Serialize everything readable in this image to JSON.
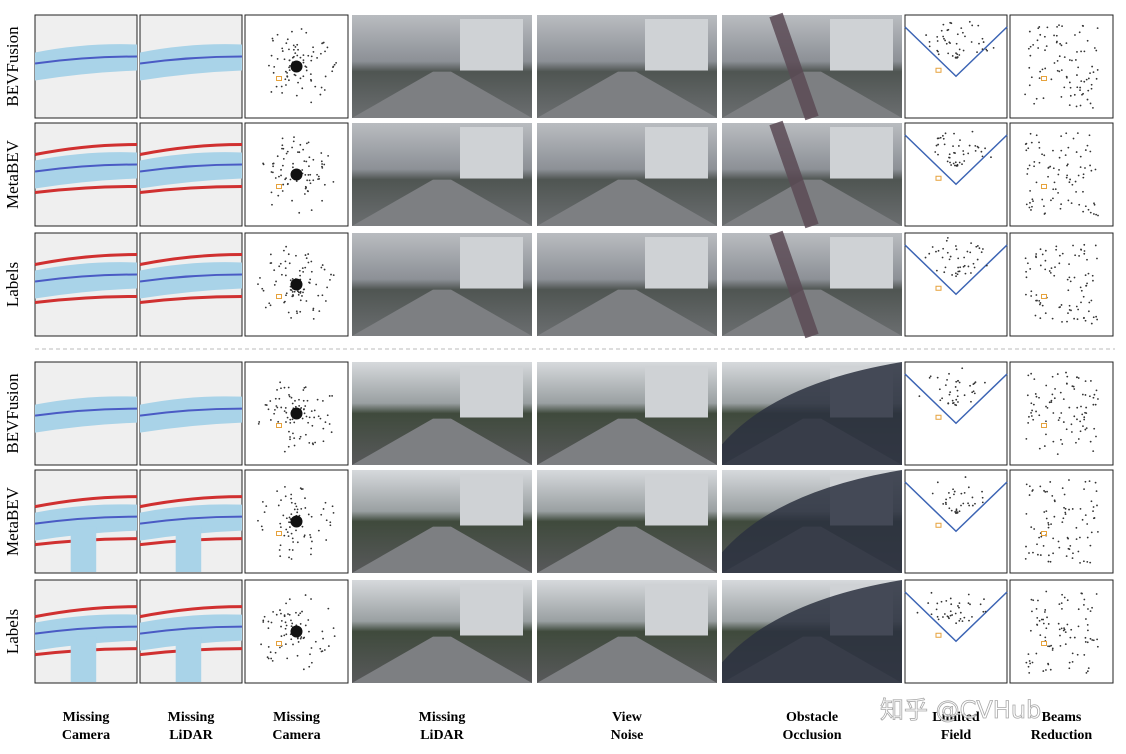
{
  "row_groups": [
    {
      "rows": [
        "BEVFusion",
        "MetaBEV",
        "Labels"
      ]
    },
    {
      "rows": [
        "BEVFusion",
        "MetaBEV",
        "Labels"
      ]
    }
  ],
  "column_labels": [
    [
      "Missing",
      "Camera"
    ],
    [
      "Missing",
      "LiDAR"
    ],
    [
      "Missing",
      "Camera"
    ],
    [
      "Missing",
      "LiDAR"
    ],
    [
      "View",
      "Noise"
    ],
    [
      "Obstacle",
      "Occlusion"
    ],
    [
      "Limited",
      "Field"
    ],
    [
      "Beams",
      "Reduction"
    ]
  ],
  "watermark": "知乎 @CVHub"
}
